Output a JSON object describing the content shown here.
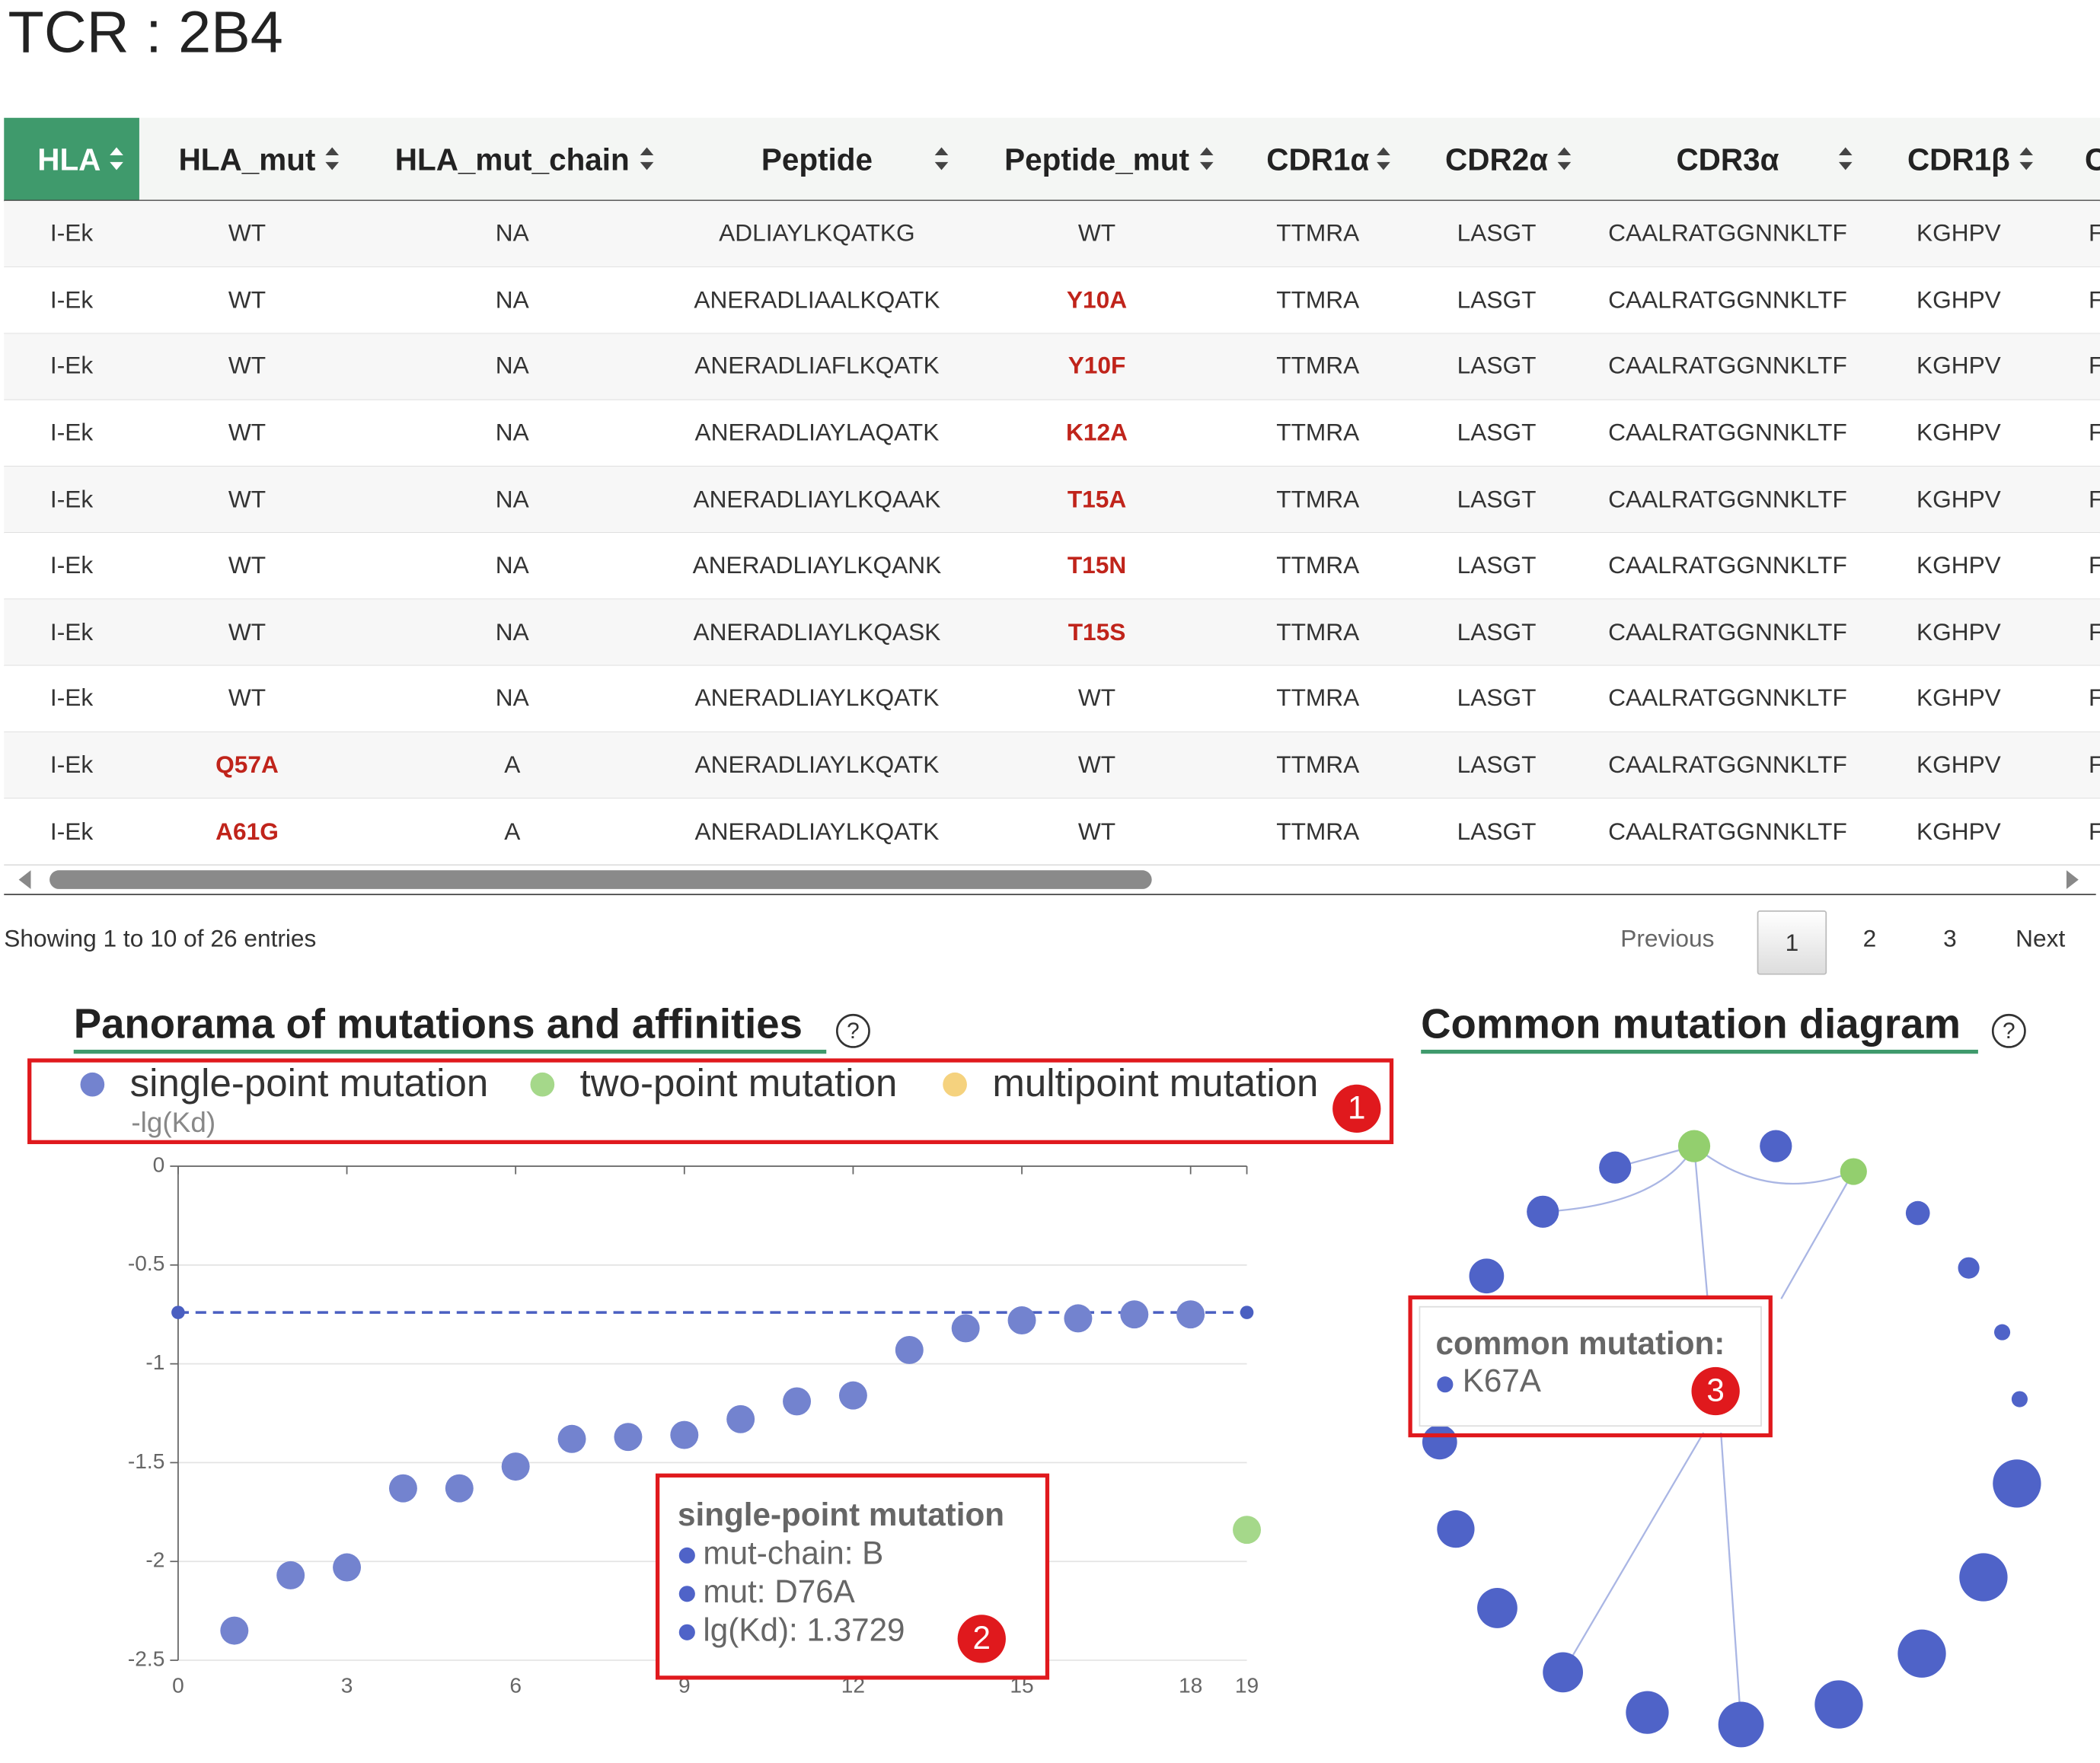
{
  "header": {
    "title": "TCR : 2B4"
  },
  "table": {
    "columns": [
      "HLA",
      "HLA_mut",
      "HLA_mut_chain",
      "Peptide",
      "Peptide_mut",
      "CDR1α",
      "CDR2α",
      "CDR3α",
      "CDR1β",
      "C"
    ],
    "rows": [
      [
        "I-Ek",
        "WT",
        "NA",
        "ADLIAYLKQATKG",
        "WT",
        "TTMRA",
        "LASGT",
        "CAALRATGGNNKLTF",
        "KGHPV",
        "F"
      ],
      [
        "I-Ek",
        "WT",
        "NA",
        "ANERADLIAALKQATK",
        "Y10A",
        "TTMRA",
        "LASGT",
        "CAALRATGGNNKLTF",
        "KGHPV",
        "F"
      ],
      [
        "I-Ek",
        "WT",
        "NA",
        "ANERADLIAFLKQATK",
        "Y10F",
        "TTMRA",
        "LASGT",
        "CAALRATGGNNKLTF",
        "KGHPV",
        "F"
      ],
      [
        "I-Ek",
        "WT",
        "NA",
        "ANERADLIAYLAQATK",
        "K12A",
        "TTMRA",
        "LASGT",
        "CAALRATGGNNKLTF",
        "KGHPV",
        "F"
      ],
      [
        "I-Ek",
        "WT",
        "NA",
        "ANERADLIAYLKQAAK",
        "T15A",
        "TTMRA",
        "LASGT",
        "CAALRATGGNNKLTF",
        "KGHPV",
        "F"
      ],
      [
        "I-Ek",
        "WT",
        "NA",
        "ANERADLIAYLKQANK",
        "T15N",
        "TTMRA",
        "LASGT",
        "CAALRATGGNNKLTF",
        "KGHPV",
        "F"
      ],
      [
        "I-Ek",
        "WT",
        "NA",
        "ANERADLIAYLKQASK",
        "T15S",
        "TTMRA",
        "LASGT",
        "CAALRATGGNNKLTF",
        "KGHPV",
        "F"
      ],
      [
        "I-Ek",
        "WT",
        "NA",
        "ANERADLIAYLKQATK",
        "WT",
        "TTMRA",
        "LASGT",
        "CAALRATGGNNKLTF",
        "KGHPV",
        "F"
      ],
      [
        "I-Ek",
        "Q57A",
        "A",
        "ANERADLIAYLKQATK",
        "WT",
        "TTMRA",
        "LASGT",
        "CAALRATGGNNKLTF",
        "KGHPV",
        "F"
      ],
      [
        "I-Ek",
        "A61G",
        "A",
        "ANERADLIAYLKQATK",
        "WT",
        "TTMRA",
        "LASGT",
        "CAALRATGGNNKLTF",
        "KGHPV",
        "F"
      ]
    ]
  },
  "table_info": "Showing 1 to 10 of 26 entries",
  "pagination": {
    "previous": "Previous",
    "pages": [
      "1",
      "2",
      "3"
    ],
    "next": "Next"
  },
  "chart_data": {
    "type": "scatter",
    "title": "Panorama of mutations and affinities",
    "y_label": "-lg(Kd)",
    "x": [
      0,
      1,
      2,
      3,
      4,
      5,
      6,
      7,
      8,
      9,
      10,
      11,
      12,
      13,
      14,
      15,
      16,
      17,
      18,
      19
    ],
    "series": [
      {
        "name": "single-point mutation",
        "color": "#7383cf",
        "values": [
          null,
          -2.35,
          -2.07,
          -2.03,
          -1.63,
          -1.63,
          -1.52,
          -1.38,
          -1.37,
          -1.36,
          -1.28,
          -1.19,
          -1.16,
          -0.93,
          -0.82,
          -0.78,
          -0.77,
          -0.75,
          -0.75,
          null
        ]
      },
      {
        "name": "two-point mutation",
        "color": "#a5d88a",
        "values": [
          null,
          null,
          null,
          null,
          null,
          null,
          null,
          null,
          null,
          null,
          null,
          null,
          null,
          null,
          null,
          null,
          null,
          null,
          null,
          -1.84
        ]
      },
      {
        "name": "multipoint mutation",
        "color": "#f5d27e",
        "values": [
          null,
          null,
          null,
          null,
          null,
          null,
          null,
          null,
          null,
          null,
          null,
          null,
          null,
          null,
          null,
          null,
          null,
          null,
          null,
          null
        ]
      }
    ],
    "mark_line": -0.74,
    "xlim": [
      0,
      19
    ],
    "xticks": [
      0,
      3,
      6,
      9,
      12,
      15,
      18,
      19
    ],
    "ylim": [
      -2.5,
      0
    ],
    "yticks": [
      0,
      -0.5,
      -1,
      -1.5,
      -2,
      -2.5
    ],
    "grid": true,
    "tooltip": [
      "single-point mutation",
      "mut-chain: B",
      "mut: D76A",
      "lg(Kd): 1.3729"
    ]
  },
  "diagram": {
    "title": "Common mutation diagram",
    "tooltip_title": "common mutation:",
    "tooltip_item": "K67A"
  },
  "annotations": [
    "1",
    "2",
    "3"
  ],
  "help_icon": "?"
}
